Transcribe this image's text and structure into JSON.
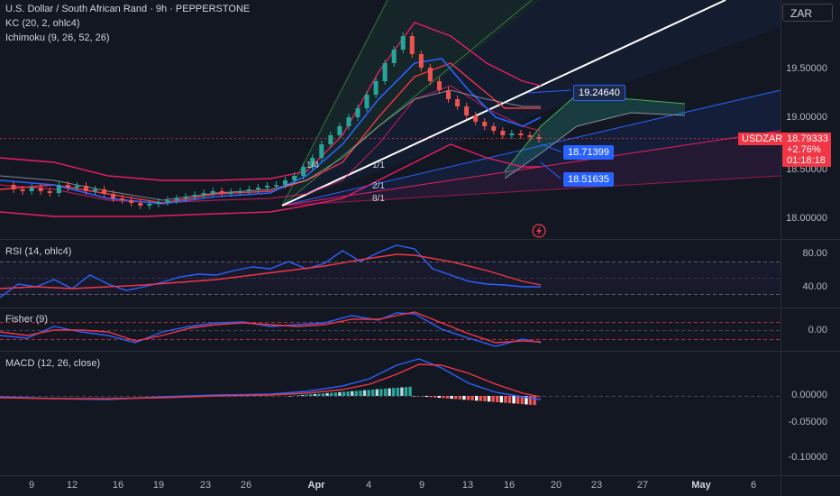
{
  "header": {
    "title": "U.S. Dollar / South African Rand · 9h · PEPPERSTONE",
    "kc": "KC (20, 2, ohlc4)",
    "ichimoku": "Ichimoku (9, 26, 52, 26)"
  },
  "currency": "ZAR",
  "price_axis": [
    "19.50000",
    "19.00000",
    "18.50000",
    "18.00000"
  ],
  "symbol_tag": "USDZAR",
  "last_price": {
    "price": "18.79333",
    "change": "+2.76%",
    "countdown": "01:18:18"
  },
  "price_tags": [
    "19.24640",
    "18.71399",
    "18.51635"
  ],
  "fan_labels": [
    "1/4",
    "1/1",
    "2/1",
    "8/1"
  ],
  "panes": {
    "rsi": {
      "label": "RSI (14, ohlc4)",
      "axis": [
        "80.00",
        "40.00"
      ]
    },
    "fisher": {
      "label": "Fisher (9)",
      "axis": [
        "0.00"
      ]
    },
    "macd": {
      "label": "MACD (12, 26, close)",
      "axis": [
        "0.00000",
        "-0.05000",
        "-0.10000"
      ]
    }
  },
  "time_axis": [
    "9",
    "12",
    "16",
    "19",
    "23",
    "26",
    "Apr",
    "4",
    "9",
    "13",
    "16",
    "20",
    "23",
    "27",
    "May",
    "6"
  ],
  "colors": {
    "background": "#131722",
    "up": "#26a69a",
    "down": "#ef5350",
    "kc": "#e91e63",
    "ichimoku_base": "#f23645",
    "ichimoku_conv": "#2962ff",
    "accent": "#2962ff"
  },
  "icons": {
    "flash": "lightning-icon"
  }
}
